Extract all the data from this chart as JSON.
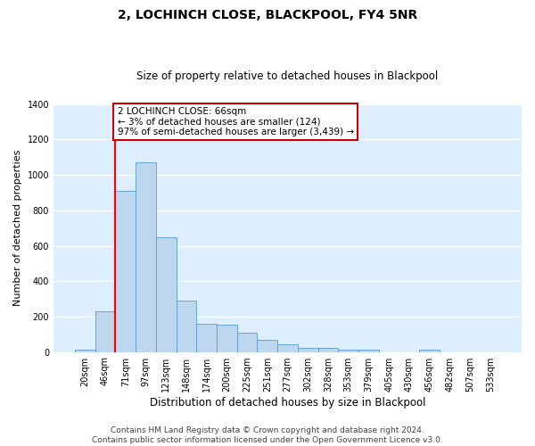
{
  "title": "2, LOCHINCH CLOSE, BLACKPOOL, FY4 5NR",
  "subtitle": "Size of property relative to detached houses in Blackpool",
  "xlabel": "Distribution of detached houses by size in Blackpool",
  "ylabel": "Number of detached properties",
  "bar_labels": [
    "20sqm",
    "46sqm",
    "71sqm",
    "97sqm",
    "123sqm",
    "148sqm",
    "174sqm",
    "200sqm",
    "225sqm",
    "251sqm",
    "277sqm",
    "302sqm",
    "328sqm",
    "353sqm",
    "379sqm",
    "405sqm",
    "430sqm",
    "456sqm",
    "482sqm",
    "507sqm",
    "533sqm"
  ],
  "bar_values": [
    15,
    228,
    910,
    1070,
    650,
    290,
    158,
    155,
    107,
    70,
    42,
    25,
    22,
    15,
    15,
    0,
    0,
    13,
    0,
    0,
    0
  ],
  "bar_color": "#bdd7ee",
  "bar_edge_color": "#5b9bd5",
  "vline_color": "#ff0000",
  "vline_position": 1.5,
  "annotation_text": "2 LOCHINCH CLOSE: 66sqm\n← 3% of detached houses are smaller (124)\n97% of semi-detached houses are larger (3,439) →",
  "annotation_box_color": "#cc0000",
  "ylim": [
    0,
    1400
  ],
  "yticks": [
    0,
    200,
    400,
    600,
    800,
    1000,
    1200,
    1400
  ],
  "footer_line1": "Contains HM Land Registry data © Crown copyright and database right 2024.",
  "footer_line2": "Contains public sector information licensed under the Open Government Licence v3.0.",
  "bg_color": "#ddeeff",
  "fig_bg_color": "#ffffff",
  "title_fontsize": 10,
  "subtitle_fontsize": 8.5,
  "ylabel_fontsize": 8,
  "xlabel_fontsize": 8.5,
  "tick_fontsize": 7,
  "footer_fontsize": 6.5
}
